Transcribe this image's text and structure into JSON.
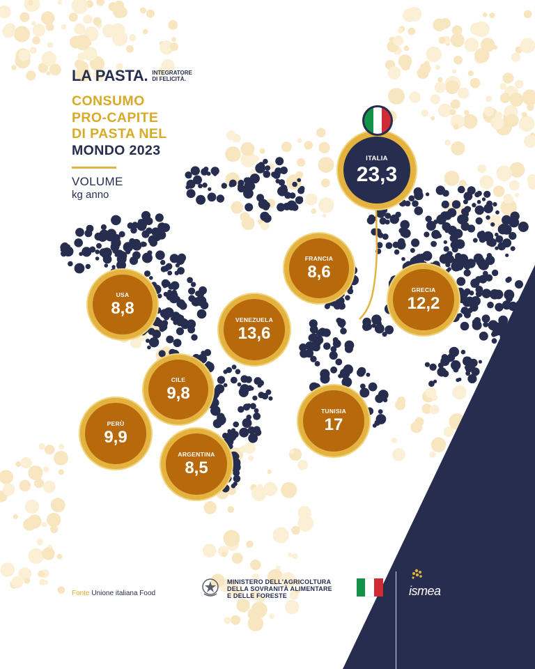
{
  "brand": {
    "name": "LA PASTA.",
    "tagline_line1": "INTEGRATORE",
    "tagline_line2": "DI FELICITÀ."
  },
  "title": {
    "line1": "CONSUMO",
    "line2": "PRO-CAPITE",
    "line3": "DI PASTA NEL",
    "line4": "MONDO 2023"
  },
  "measure": {
    "label": "VOLUME",
    "unit": "kg anno"
  },
  "countries": [
    {
      "name": "ITALIA",
      "value": "23,3"
    },
    {
      "name": "FRANCIA",
      "value": "8,6"
    },
    {
      "name": "GRECIA",
      "value": "12,2"
    },
    {
      "name": "USA",
      "value": "8,8"
    },
    {
      "name": "VENEZUELA",
      "value": "13,6"
    },
    {
      "name": "CILE",
      "value": "9,8"
    },
    {
      "name": "PERÙ",
      "value": "9,9"
    },
    {
      "name": "ARGENTINA",
      "value": "8,5"
    },
    {
      "name": "TUNISIA",
      "value": "17"
    }
  ],
  "footer": {
    "source_key": "Fonte",
    "source_value": "Unione italiana Food",
    "ministry_line1": "MINISTERO DELL'AGRICOLTURA",
    "ministry_line2": "DELLA SOVRANITÀ ALIMENTARE",
    "ministry_line3": "E DELLE FORESTE",
    "partner": "ismea"
  },
  "colors": {
    "navy": "#262d4e",
    "gold": "#d9a928",
    "bubble": "#b8690c",
    "ring": "#e3b23f",
    "flag_green": "#14924a",
    "flag_red": "#ce2b37"
  },
  "icons": [
    "italian-flag-icon",
    "republic-emblem-icon",
    "wheat-icon"
  ]
}
